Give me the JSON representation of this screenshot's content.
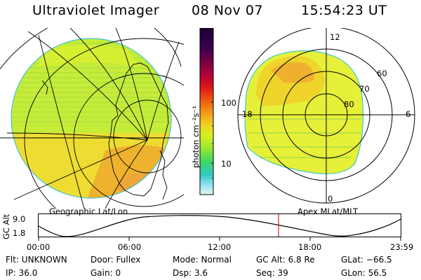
{
  "header": {
    "instrument": "Ultraviolet Imager",
    "date": "08 Nov 07",
    "time": "15:54:23 UT"
  },
  "colorbar": {
    "unit_label": "photon cm⁻²s⁻¹",
    "tick_100": "100",
    "tick_10": "10",
    "colors": [
      "#1a0030",
      "#3a0050",
      "#b0003a",
      "#e01818",
      "#f06010",
      "#f3a21a",
      "#f0d020",
      "#d8f020",
      "#9ae830",
      "#40d860",
      "#30c8c0",
      "#90e0f0",
      "#e8f4f8"
    ]
  },
  "geo_panel": {
    "label": "Geographic Lat/Lon"
  },
  "polar_panel": {
    "label": "Apex MLat/MLT",
    "mlt_labels": {
      "top": "12",
      "left": "18",
      "right": "6",
      "bottom": "0"
    },
    "mlat_labels": [
      "60",
      "70",
      "80"
    ]
  },
  "timeline": {
    "axis_title": "GC Alt",
    "y_max": "9.0",
    "y_min": "1.8",
    "x_ticks": [
      "00:00",
      "06:00",
      "12:00",
      "18:00",
      "23:59"
    ],
    "marker_time": "15:54"
  },
  "status": {
    "flt": "Flt: UNKNOWN",
    "door": "Door: Fullex",
    "mode": "Mode: Normal",
    "gc_alt": "GC Alt: 6.8 Re",
    "glat": "GLat: −66.5",
    "ip": "IP: 36.0",
    "gain": "Gain:   0",
    "dsp": "Dsp:      3.6",
    "seq": "Seq: 39",
    "glon": "GLon:  56.5"
  }
}
